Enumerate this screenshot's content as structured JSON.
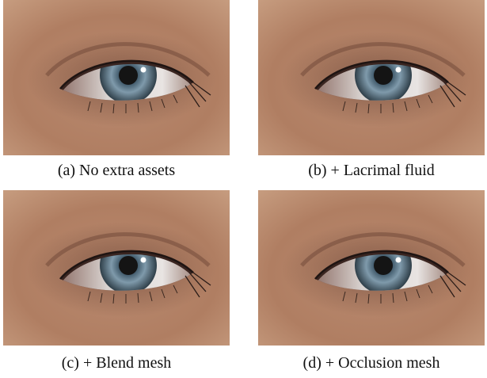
{
  "figure": {
    "panels": [
      {
        "caption": "(a) No extra assets"
      },
      {
        "caption": "(b) + Lacrimal fluid"
      },
      {
        "caption": "(c) + Blend mesh"
      },
      {
        "caption": "(d) + Occlusion mesh"
      }
    ]
  }
}
